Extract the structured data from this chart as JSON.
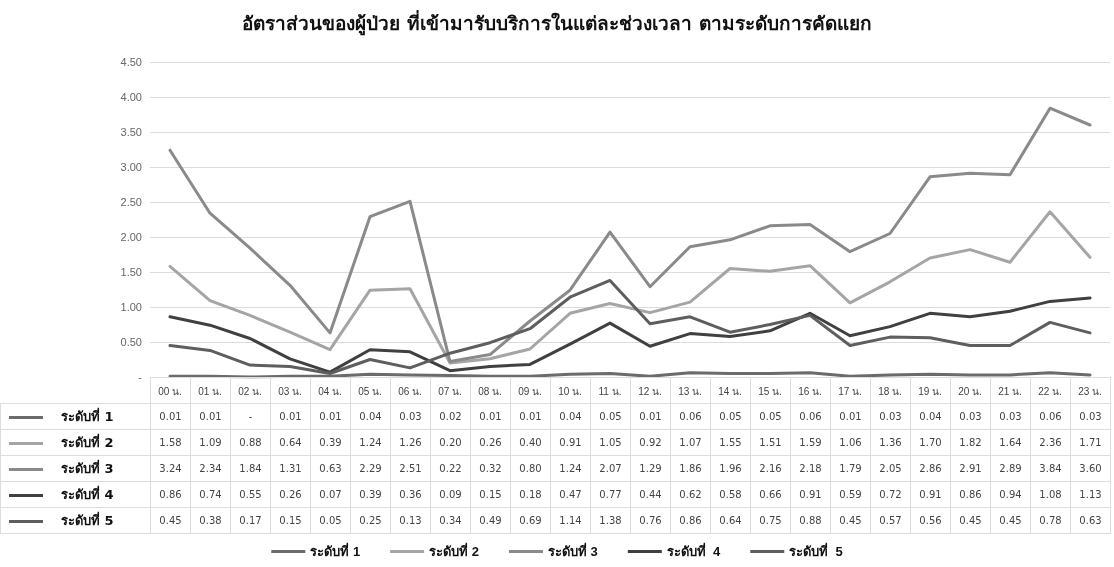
{
  "chart_data": {
    "type": "line",
    "title": "อัตราส่วนของผู้ป่วย ที่เข้ามารับบริการในแต่ละช่วงเวลา ตามระดับการคัดแยก",
    "categories": [
      "00 น.",
      "01 น.",
      "02 น.",
      "03 น.",
      "04 น.",
      "05 น.",
      "06 น.",
      "07 น.",
      "08 น.",
      "09 น.",
      "10 น.",
      "11 น.",
      "12 น.",
      "13 น.",
      "14 น.",
      "15 น.",
      "16 น.",
      "17 น.",
      "18 น.",
      "19 น.",
      "20 น.",
      "21 น.",
      "22 น.",
      "23 น."
    ],
    "series": [
      {
        "name": "ระดับที่ 1",
        "color": "#6b6b6b",
        "values": [
          0.01,
          0.01,
          0,
          0.01,
          0.01,
          0.04,
          0.03,
          0.02,
          0.01,
          0.01,
          0.04,
          0.05,
          0.01,
          0.06,
          0.05,
          0.05,
          0.06,
          0.01,
          0.03,
          0.04,
          0.03,
          0.03,
          0.06,
          0.03
        ],
        "value_labels": [
          "0.01",
          "0.01",
          "-",
          "0.01",
          "0.01",
          "0.04",
          "0.03",
          "0.02",
          "0.01",
          "0.01",
          "0.04",
          "0.05",
          "0.01",
          "0.06",
          "0.05",
          "0.05",
          "0.06",
          "0.01",
          "0.03",
          "0.04",
          "0.03",
          "0.03",
          "0.06",
          "0.03"
        ]
      },
      {
        "name": "ระดับที่ 2",
        "color": "#a5a5a5",
        "values": [
          1.58,
          1.09,
          0.88,
          0.64,
          0.39,
          1.24,
          1.26,
          0.2,
          0.26,
          0.4,
          0.91,
          1.05,
          0.92,
          1.07,
          1.55,
          1.51,
          1.59,
          1.06,
          1.36,
          1.7,
          1.82,
          1.64,
          2.36,
          1.71
        ],
        "value_labels": [
          "1.58",
          "1.09",
          "0.88",
          "0.64",
          "0.39",
          "1.24",
          "1.26",
          "0.20",
          "0.26",
          "0.40",
          "0.91",
          "1.05",
          "0.92",
          "1.07",
          "1.55",
          "1.51",
          "1.59",
          "1.06",
          "1.36",
          "1.70",
          "1.82",
          "1.64",
          "2.36",
          "1.71"
        ]
      },
      {
        "name": "ระดับที่ 3",
        "color": "#8a8a8a",
        "values": [
          3.24,
          2.34,
          1.84,
          1.31,
          0.63,
          2.29,
          2.51,
          0.22,
          0.32,
          0.8,
          1.24,
          2.07,
          1.29,
          1.86,
          1.96,
          2.16,
          2.18,
          1.79,
          2.05,
          2.86,
          2.91,
          2.89,
          3.84,
          3.6
        ],
        "value_labels": [
          "3.24",
          "2.34",
          "1.84",
          "1.31",
          "0.63",
          "2.29",
          "2.51",
          "0.22",
          "0.32",
          "0.80",
          "1.24",
          "2.07",
          "1.29",
          "1.86",
          "1.96",
          "2.16",
          "2.18",
          "1.79",
          "2.05",
          "2.86",
          "2.91",
          "2.89",
          "3.84",
          "3.60"
        ]
      },
      {
        "name": "ระดับที่  4",
        "color": "#404040",
        "values": [
          0.86,
          0.74,
          0.55,
          0.26,
          0.07,
          0.39,
          0.36,
          0.09,
          0.15,
          0.18,
          0.47,
          0.77,
          0.44,
          0.62,
          0.58,
          0.66,
          0.91,
          0.59,
          0.72,
          0.91,
          0.86,
          0.94,
          1.08,
          1.13
        ],
        "value_labels": [
          "0.86",
          "0.74",
          "0.55",
          "0.26",
          "0.07",
          "0.39",
          "0.36",
          "0.09",
          "0.15",
          "0.18",
          "0.47",
          "0.77",
          "0.44",
          "0.62",
          "0.58",
          "0.66",
          "0.91",
          "0.59",
          "0.72",
          "0.91",
          "0.86",
          "0.94",
          "1.08",
          "1.13"
        ]
      },
      {
        "name": "ระดับที่  5",
        "color": "#5e5e5e",
        "values": [
          0.45,
          0.38,
          0.17,
          0.15,
          0.05,
          0.25,
          0.13,
          0.34,
          0.49,
          0.69,
          1.14,
          1.38,
          0.76,
          0.86,
          0.64,
          0.75,
          0.88,
          0.45,
          0.57,
          0.56,
          0.45,
          0.45,
          0.78,
          0.63
        ],
        "value_labels": [
          "0.45",
          "0.38",
          "0.17",
          "0.15",
          "0.05",
          "0.25",
          "0.13",
          "0.34",
          "0.49",
          "0.69",
          "1.14",
          "1.38",
          "0.76",
          "0.86",
          "0.64",
          "0.75",
          "0.88",
          "0.45",
          "0.57",
          "0.56",
          "0.45",
          "0.45",
          "0.78",
          "0.63"
        ]
      }
    ],
    "ylim": [
      0,
      4.5
    ],
    "yticks": [
      {
        "value": 0,
        "label": "-"
      },
      {
        "value": 0.5,
        "label": "0.50"
      },
      {
        "value": 1,
        "label": "1.00"
      },
      {
        "value": 1.5,
        "label": "1.50"
      },
      {
        "value": 2,
        "label": "2.00"
      },
      {
        "value": 2.5,
        "label": "2.50"
      },
      {
        "value": 3,
        "label": "3.00"
      },
      {
        "value": 3.5,
        "label": "3.50"
      },
      {
        "value": 4,
        "label": "4.00"
      },
      {
        "value": 4.5,
        "label": "4.50"
      }
    ],
    "grid": "y",
    "legend": "bottom",
    "marker": "none",
    "line_style": "solid"
  }
}
